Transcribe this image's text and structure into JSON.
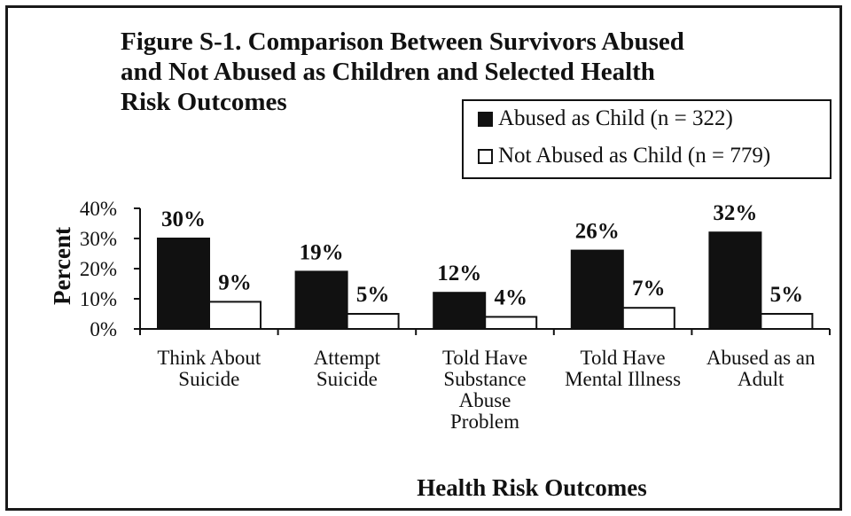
{
  "chart_data": {
    "type": "bar",
    "title": "Figure S-1.  Comparison Between Survivors Abused\nand Not Abused as Children and Selected Health\nRisk Outcomes",
    "xlabel": "Health Risk Outcomes",
    "ylabel": "Percent",
    "categories": [
      "Think About\nSuicide",
      "Attempt\nSuicide",
      "Told Have\nSubstance\nAbuse\nProblem",
      "Told Have\nMental Illness",
      "Abused as an\nAdult"
    ],
    "series": [
      {
        "name": "Abused as Child  (n = 322)",
        "values": [
          30,
          19,
          12,
          26,
          32
        ],
        "labels": [
          "30%",
          "19%",
          "12%",
          "26%",
          "32%"
        ]
      },
      {
        "name": "Not Abused as Child  (n = 779)",
        "values": [
          9,
          5,
          4,
          7,
          5
        ],
        "labels": [
          "9%",
          "5%",
          "4%",
          "7%",
          "5%"
        ]
      }
    ],
    "ylim": [
      0,
      40
    ],
    "yticks": [
      "0%",
      "10%",
      "20%",
      "30%",
      "40%"
    ],
    "grid": false,
    "legend_position": "top-right",
    "colors": {
      "abused": "#111111",
      "not_abused": "#ffffff"
    }
  }
}
